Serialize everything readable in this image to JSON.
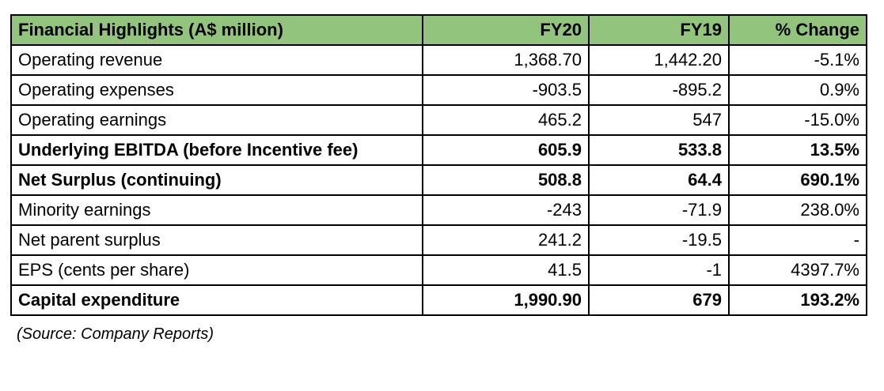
{
  "colors": {
    "header_bg": "#93c47d",
    "border": "#000000",
    "text": "#000000",
    "page_bg": "#ffffff"
  },
  "table": {
    "columns": {
      "label": "Financial Highlights (A$ million)",
      "fy20": "FY20",
      "fy19": "FY19",
      "change": "% Change"
    },
    "rows": [
      {
        "label": "Operating revenue",
        "fy20": "1,368.70",
        "fy19": "1,442.20",
        "change": "-5.1%",
        "bold": false
      },
      {
        "label": "Operating expenses",
        "fy20": "-903.5",
        "fy19": "-895.2",
        "change": "0.9%",
        "bold": false
      },
      {
        "label": "Operating earnings",
        "fy20": "465.2",
        "fy19": "547",
        "change": "-15.0%",
        "bold": false
      },
      {
        "label": "Underlying EBITDA (before Incentive fee)",
        "fy20": "605.9",
        "fy19": "533.8",
        "change": "13.5%",
        "bold": true
      },
      {
        "label": "Net Surplus (continuing)",
        "fy20": "508.8",
        "fy19": "64.4",
        "change": "690.1%",
        "bold": true
      },
      {
        "label": "Minority earnings",
        "fy20": "-243",
        "fy19": "-71.9",
        "change": "238.0%",
        "bold": false
      },
      {
        "label": "Net parent surplus",
        "fy20": "241.2",
        "fy19": "-19.5",
        "change": "-",
        "bold": false
      },
      {
        "label": "EPS (cents per share)",
        "fy20": "41.5",
        "fy19": "-1",
        "change": "4397.7%",
        "bold": false
      },
      {
        "label": "Capital expenditure",
        "fy20": "1,990.90",
        "fy19": "679",
        "change": "193.2%",
        "bold": true
      }
    ]
  },
  "source_note": "(Source: Company Reports)",
  "chart_data": {
    "type": "table",
    "title": "Financial Highlights (A$ million)",
    "columns": [
      "Financial Highlights (A$ million)",
      "FY20",
      "FY19",
      "% Change"
    ],
    "rows": [
      [
        "Operating revenue",
        1368.7,
        1442.2,
        "-5.1%"
      ],
      [
        "Operating expenses",
        -903.5,
        -895.2,
        "0.9%"
      ],
      [
        "Operating earnings",
        465.2,
        547,
        "-15.0%"
      ],
      [
        "Underlying EBITDA (before Incentive fee)",
        605.9,
        533.8,
        "13.5%"
      ],
      [
        "Net Surplus (continuing)",
        508.8,
        64.4,
        "690.1%"
      ],
      [
        "Minority earnings",
        -243,
        -71.9,
        "238.0%"
      ],
      [
        "Net parent surplus",
        241.2,
        -19.5,
        "-"
      ],
      [
        "EPS (cents per share)",
        41.5,
        -1,
        "4397.7%"
      ],
      [
        "Capital expenditure",
        1990.9,
        679,
        "193.2%"
      ]
    ],
    "bold_rows": [
      "Underlying EBITDA (before Incentive fee)",
      "Net Surplus (continuing)",
      "Capital expenditure"
    ],
    "annotations": [
      "(Source: Company Reports)"
    ],
    "layout": {
      "header_bg": "#93c47d",
      "grid": "all-borders",
      "numeric_alignment": "right"
    }
  }
}
